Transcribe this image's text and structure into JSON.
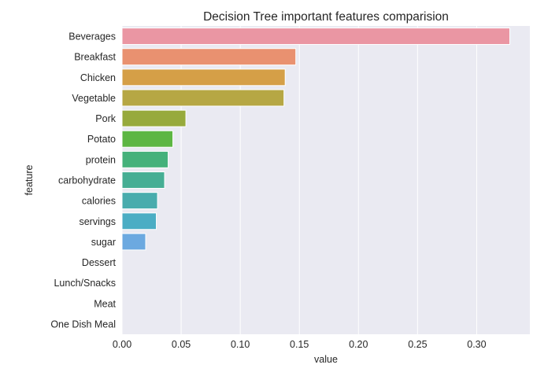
{
  "chart_data": {
    "type": "bar",
    "orientation": "horizontal",
    "title": "Decision Tree important features comparision",
    "xlabel": "value",
    "ylabel": "feature",
    "xlim": [
      0,
      0.345
    ],
    "x_ticks": [
      "0.00",
      "0.05",
      "0.10",
      "0.15",
      "0.20",
      "0.25",
      "0.30"
    ],
    "grid": true,
    "categories": [
      "Beverages",
      "Breakfast",
      "Chicken",
      "Vegetable",
      "Pork",
      "Potato",
      "protein",
      "carbohydrate",
      "calories",
      "servings",
      "sugar",
      "Dessert",
      "Lunch/Snacks",
      "Meat",
      "One Dish Meal"
    ],
    "values": [
      0.328,
      0.147,
      0.138,
      0.137,
      0.054,
      0.043,
      0.039,
      0.036,
      0.03,
      0.029,
      0.02,
      0.0,
      0.0,
      0.0,
      0.0
    ],
    "colors": [
      "#ea96a3",
      "#e99170",
      "#d59f47",
      "#b6a744",
      "#97aa3c",
      "#5db643",
      "#45b17b",
      "#46ae94",
      "#49acad",
      "#4badc4",
      "#6ca9e0",
      "#a7a5ec",
      "#d79dec",
      "#ec95d6",
      "#ec94bc"
    ]
  }
}
